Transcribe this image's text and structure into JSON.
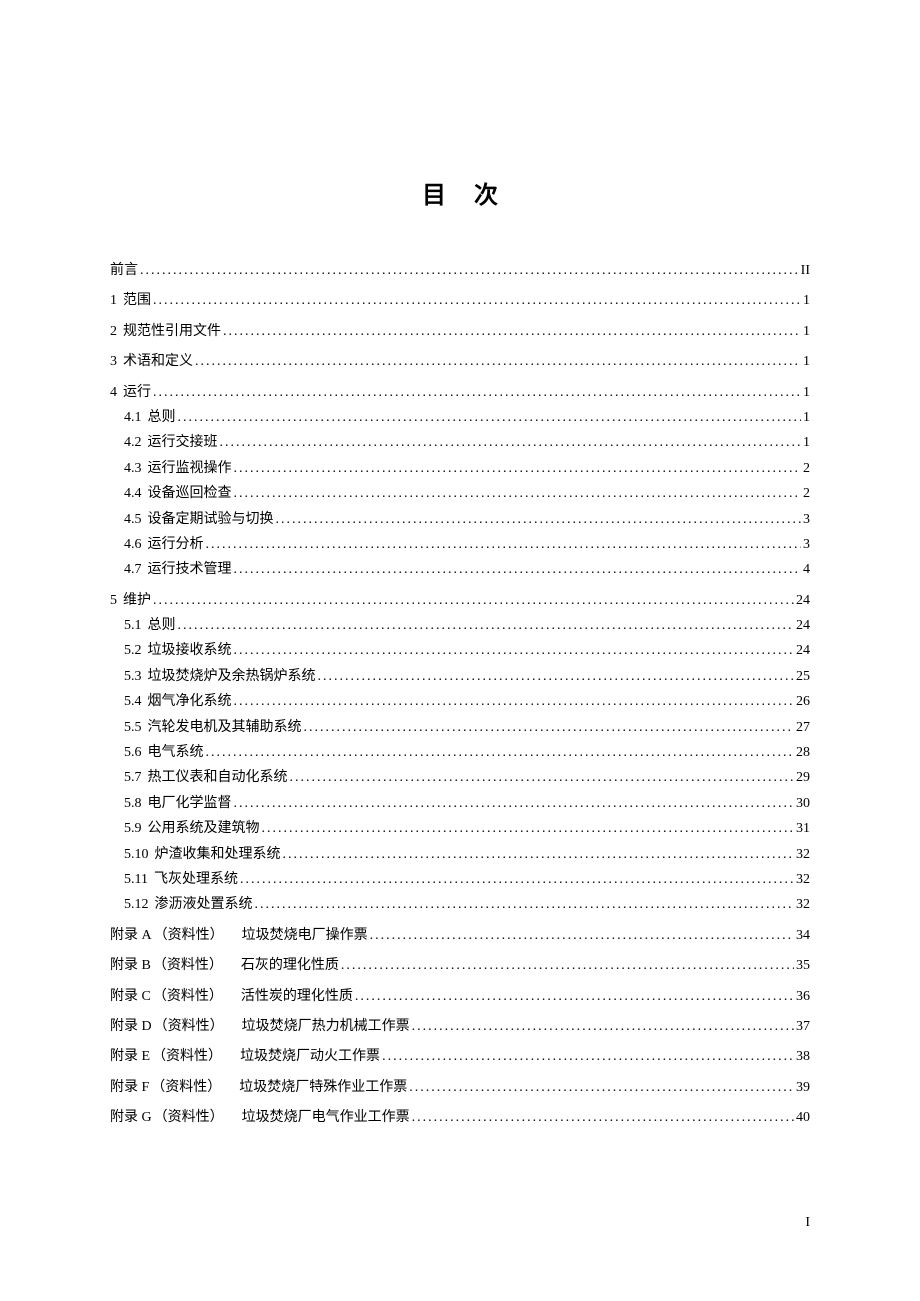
{
  "title": "目次",
  "page_number": "I",
  "entries": [
    {
      "kind": "plain",
      "label": "前言",
      "page": "II",
      "gap": false
    },
    {
      "kind": "top",
      "num": "1",
      "label": "范围",
      "page": "1",
      "gap": true
    },
    {
      "kind": "top",
      "num": "2",
      "label": "规范性引用文件",
      "page": "1",
      "gap": true
    },
    {
      "kind": "top",
      "num": "3",
      "label": "术语和定义",
      "page": "1",
      "gap": true
    },
    {
      "kind": "top",
      "num": "4",
      "label": "运行",
      "page": "1",
      "gap": true
    },
    {
      "kind": "sub",
      "num": "4.1",
      "label": "总则",
      "page": "1",
      "gap": false
    },
    {
      "kind": "sub",
      "num": "4.2",
      "label": "运行交接班",
      "page": "1",
      "gap": false
    },
    {
      "kind": "sub",
      "num": "4.3",
      "label": "运行监视操作",
      "page": "2",
      "gap": false
    },
    {
      "kind": "sub",
      "num": "4.4",
      "label": "设备巡回检查",
      "page": "2",
      "gap": false
    },
    {
      "kind": "sub",
      "num": "4.5",
      "label": "设备定期试验与切换",
      "page": "3",
      "gap": false
    },
    {
      "kind": "sub",
      "num": "4.6",
      "label": "运行分析",
      "page": "3",
      "gap": false
    },
    {
      "kind": "sub",
      "num": "4.7",
      "label": "运行技术管理",
      "page": "4",
      "gap": false
    },
    {
      "kind": "top",
      "num": "5",
      "label": "维护",
      "page": "24",
      "gap": true
    },
    {
      "kind": "sub",
      "num": "5.1",
      "label": "总则",
      "page": "24",
      "gap": false
    },
    {
      "kind": "sub",
      "num": "5.2",
      "label": "垃圾接收系统",
      "page": "24",
      "gap": false
    },
    {
      "kind": "sub",
      "num": "5.3",
      "label": "垃圾焚烧炉及余热锅炉系统",
      "page": "25",
      "gap": false
    },
    {
      "kind": "sub",
      "num": "5.4",
      "label": "烟气净化系统",
      "page": "26",
      "gap": false
    },
    {
      "kind": "sub",
      "num": "5.5",
      "label": "汽轮发电机及其辅助系统",
      "page": "27",
      "gap": false
    },
    {
      "kind": "sub",
      "num": "5.6",
      "label": "电气系统",
      "page": "28",
      "gap": false
    },
    {
      "kind": "sub",
      "num": "5.7",
      "label": "热工仪表和自动化系统",
      "page": "29",
      "gap": false
    },
    {
      "kind": "sub",
      "num": "5.8",
      "label": "电厂化学监督",
      "page": "30",
      "gap": false
    },
    {
      "kind": "sub",
      "num": "5.9",
      "label": "公用系统及建筑物",
      "page": "31",
      "gap": false
    },
    {
      "kind": "sub",
      "num": "5.10",
      "label": "炉渣收集和处理系统",
      "page": "32",
      "gap": false
    },
    {
      "kind": "sub",
      "num": "5.11",
      "label": "飞灰处理系统",
      "page": "32",
      "gap": false
    },
    {
      "kind": "sub",
      "num": "5.12",
      "label": "渗沥液处置系统",
      "page": "32",
      "gap": false
    },
    {
      "kind": "appendix",
      "num": "附录 A",
      "type": "（资料性）",
      "label": "垃圾焚烧电厂操作票",
      "page": "34",
      "gap": true
    },
    {
      "kind": "appendix",
      "num": "附录 B",
      "type": "（资料性）",
      "label": "石灰的理化性质",
      "page": "35",
      "gap": true
    },
    {
      "kind": "appendix",
      "num": "附录 C",
      "type": "（资料性）",
      "label": "活性炭的理化性质",
      "page": "36",
      "gap": true
    },
    {
      "kind": "appendix",
      "num": "附录 D",
      "type": "（资料性）",
      "label": "垃圾焚烧厂热力机械工作票",
      "page": "37",
      "gap": true
    },
    {
      "kind": "appendix",
      "num": "附录 E",
      "type": "（资料性）",
      "label": "垃圾焚烧厂动火工作票",
      "page": "38",
      "gap": true
    },
    {
      "kind": "appendix",
      "num": "附录 F",
      "type": "（资料性）",
      "label": "垃圾焚烧厂特殊作业工作票",
      "page": "39",
      "gap": true
    },
    {
      "kind": "appendix",
      "num": "附录 G",
      "type": "（资料性）",
      "label": "垃圾焚烧厂电气作业工作票",
      "page": "40",
      "gap": true
    }
  ]
}
